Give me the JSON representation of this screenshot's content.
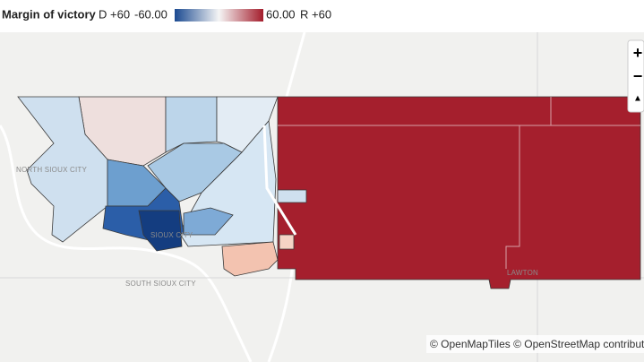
{
  "legend": {
    "title": "Margin of victory",
    "left_label": "D +60",
    "min_label": "-60.00",
    "max_label": "60.00",
    "right_label": "R +60"
  },
  "map": {
    "places": [
      "NORTH SIOUX CITY",
      "SIOUX CITY",
      "SOUTH SIOUX CITY",
      "LAWTON"
    ],
    "controls": {
      "zoom_in": "+",
      "zoom_out": "−",
      "reset": "▲"
    },
    "attribution": "© OpenMapTiles © OpenStreetMap contributo"
  }
}
